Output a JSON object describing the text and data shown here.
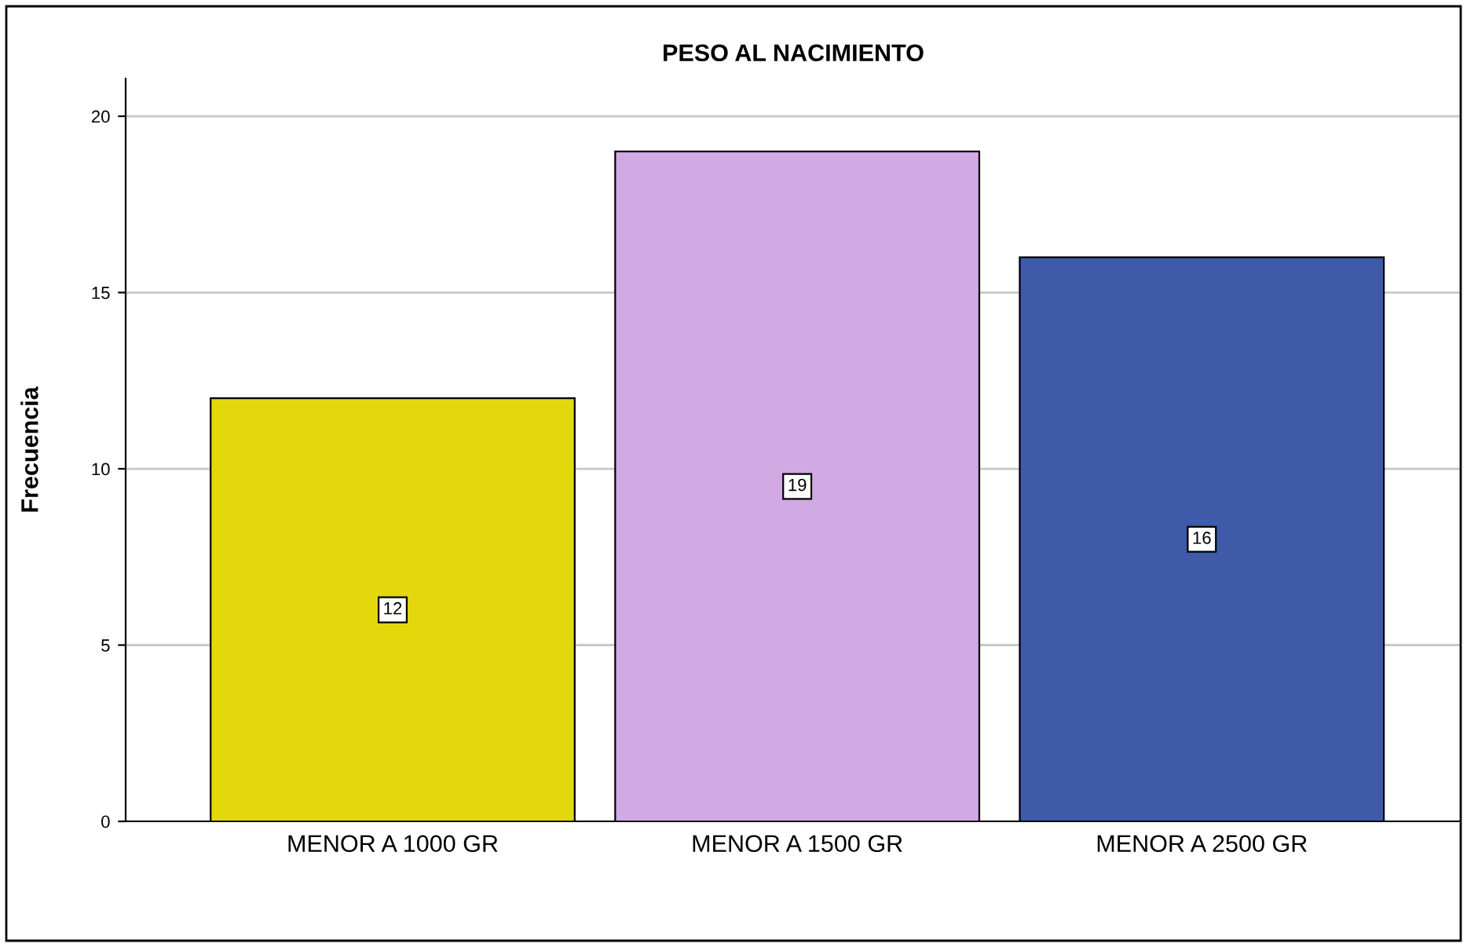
{
  "chart_data": {
    "type": "bar",
    "title": "PESO AL NACIMIENTO",
    "ylabel": "Frecuencia",
    "categories": [
      "MENOR A 1000 GR",
      "MENOR A 1500 GR",
      "MENOR A 2500 GR"
    ],
    "values": [
      12,
      19,
      16
    ],
    "colors": [
      "#e3d80c",
      "#d1a9e3",
      "#3e5aa9"
    ],
    "ylim": [
      0,
      21.07
    ],
    "yticks": [
      0,
      5,
      10,
      15,
      20
    ],
    "grid": "y",
    "data_labels": true
  }
}
